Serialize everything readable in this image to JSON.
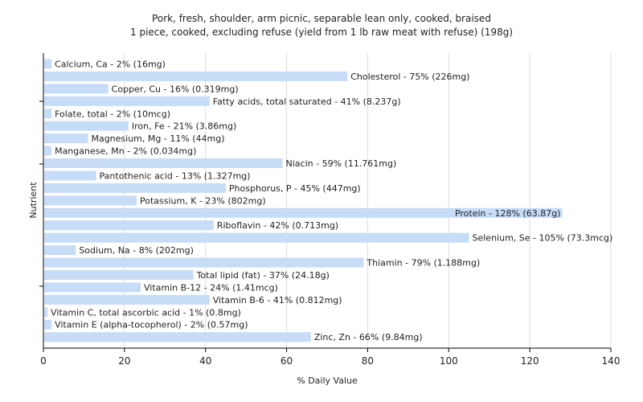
{
  "chart_data": {
    "type": "bar",
    "orientation": "horizontal",
    "title": "Pork, fresh, shoulder, arm picnic, separable lean only, cooked, braised",
    "subtitle": "1 piece, cooked, excluding refuse (yield from 1 lb raw meat with refuse) (198g)",
    "xlabel": "% Daily Value",
    "ylabel": "Nutrient",
    "xlim": [
      0,
      140
    ],
    "xticks": [
      0,
      20,
      40,
      60,
      80,
      100,
      120,
      140
    ],
    "grid": true,
    "bar_color": "#c6dcf7",
    "categories": [
      "Calcium, Ca",
      "Cholesterol",
      "Copper, Cu",
      "Fatty acids, total saturated",
      "Folate, total",
      "Iron, Fe",
      "Magnesium, Mg",
      "Manganese, Mn",
      "Niacin",
      "Pantothenic acid",
      "Phosphorus, P",
      "Potassium, K",
      "Protein",
      "Riboflavin",
      "Selenium, Se",
      "Sodium, Na",
      "Thiamin",
      "Total lipid (fat)",
      "Vitamin B-12",
      "Vitamin B-6",
      "Vitamin C, total ascorbic acid",
      "Vitamin E (alpha-tocopherol)",
      "Zinc, Zn"
    ],
    "values": [
      2,
      75,
      16,
      41,
      2,
      21,
      11,
      2,
      59,
      13,
      45,
      23,
      128,
      42,
      105,
      8,
      79,
      37,
      24,
      41,
      1,
      2,
      66
    ],
    "labels": [
      "Calcium, Ca - 2% (16mg)",
      "Cholesterol - 75% (226mg)",
      "Copper, Cu - 16% (0.319mg)",
      "Fatty acids, total saturated - 41% (8.237g)",
      "Folate, total - 2% (10mcg)",
      "Iron, Fe - 21% (3.86mg)",
      "Magnesium, Mg - 11% (44mg)",
      "Manganese, Mn - 2% (0.034mg)",
      "Niacin - 59% (11.761mg)",
      "Pantothenic acid - 13% (1.327mg)",
      "Phosphorus, P - 45% (447mg)",
      "Potassium, K - 23% (802mg)",
      "Protein - 128% (63.87g)",
      "Riboflavin - 42% (0.713mg)",
      "Selenium, Se - 105% (73.3mcg)",
      "Sodium, Na - 8% (202mg)",
      "Thiamin - 79% (1.188mg)",
      "Total lipid (fat) - 37% (24.18g)",
      "Vitamin B-12 - 24% (1.41mcg)",
      "Vitamin B-6 - 41% (0.812mg)",
      "Vitamin C, total ascorbic acid - 1% (0.8mg)",
      "Vitamin E (alpha-tocopherol) - 2% (0.57mg)",
      "Zinc, Zn - 66% (9.84mg)"
    ]
  }
}
